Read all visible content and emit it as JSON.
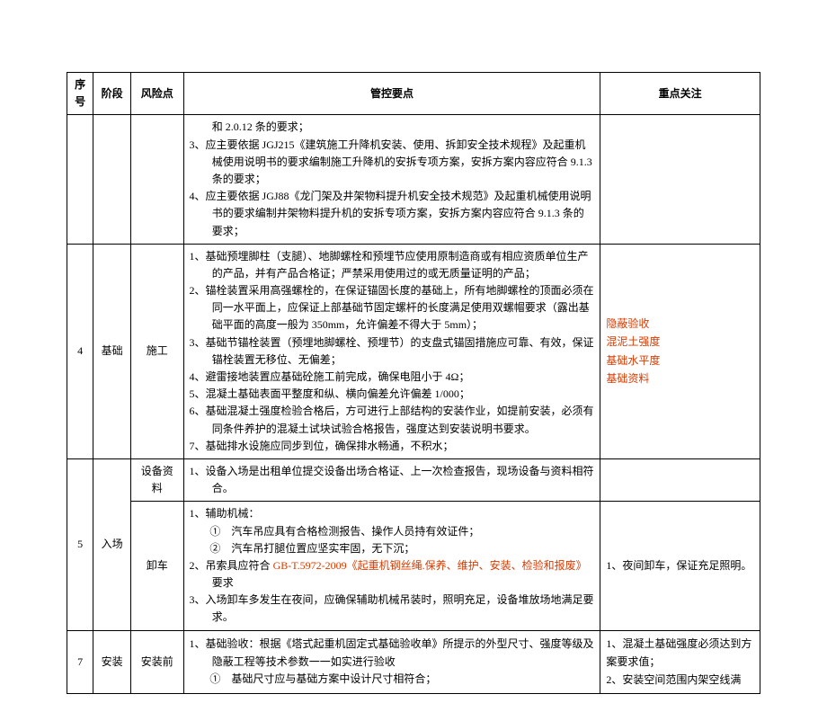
{
  "headers": {
    "seq": "序号",
    "phase": "阶段",
    "risk": "风险点",
    "points": "管控要点",
    "focus": "重点关注"
  },
  "rows": [
    {
      "seq": "",
      "phase": "",
      "risk": "",
      "items": [
        {
          "prefix": "",
          "text": "和 2.0.12 条的要求；"
        },
        {
          "prefix": "3、",
          "text": "应主要依据 JGJ215《建筑施工升降机安装、使用、拆卸安全技术规程》及起重机械使用说明书的要求编制施工升降机的安拆专项方案，安拆方案内容应符合 9.1.3 条的要求；"
        },
        {
          "prefix": "4、",
          "text": "应主要依据 JGJ88《龙门架及井架物料提升机安全技术规范》及起重机械使用说明书的要求编制井架物料提升机的安拆专项方案，安拆方案内容应符合 9.1.3 条的要求；"
        }
      ],
      "focus": ""
    },
    {
      "seq": "4",
      "phase": "基础",
      "risk": "施工",
      "items": [
        {
          "prefix": "1、",
          "text": "基础预埋脚柱（支腿）、地脚螺栓和预埋节应使用原制造商或有相应资质单位生产的产品，并有产品合格证；严禁采用使用过的或无质量证明的产品；"
        },
        {
          "prefix": "2、",
          "text": "锚栓装置采用高强螺栓的，在保证锚固长度的基础上，所有地脚螺栓的顶面必须在同一水平面上，应保证上部基础节固定螺杆的长度满足使用双螺帽要求（露出基础平面的高度一般为 350mm，允许偏差不得大于 5mm）；"
        },
        {
          "prefix": "3、",
          "text": "基础节锚栓装置（预埋地脚螺栓、预埋节）的支盘式锚固措施应可靠、有效，保证锚栓装置无移位、无偏差；"
        },
        {
          "prefix": "4、",
          "text": "避雷接地装置应基础砼施工前完成，确保电阻小于 4Ω；"
        },
        {
          "prefix": "5、",
          "text": "混凝土基础表面平整度和纵、横向偏差允许偏差 1/000；"
        },
        {
          "prefix": "6、",
          "text": "基础混凝土强度检验合格后，方可进行上部结构的安装作业，如提前安装，必须有同条件养护的混凝土试块试验合格报告，强度达到安装说明书要求。"
        },
        {
          "prefix": "7、",
          "text": "基础排水设施应同步到位，确保排水畅通，不积水；"
        }
      ],
      "focus_lines": [
        "隐蔽验收",
        "混泥土强度",
        "基础水平度",
        "基础资料"
      ],
      "focus_red": true
    },
    {
      "seq": "5",
      "phase": "入场",
      "rowspan": 2,
      "subrows": [
        {
          "risk": "设备资料",
          "items": [
            {
              "prefix": "1、",
              "text": "设备入场是出租单位提交设备出场合格证、上一次检查报告，现场设备与资料相符合。"
            }
          ],
          "focus": ""
        },
        {
          "risk": "卸车",
          "items": [
            {
              "prefix": "1、",
              "text": "辅助机械：",
              "subs": [
                {
                  "marker": "①",
                  "text": "汽车吊应具有合格检测报告、操作人员持有效证件；"
                },
                {
                  "marker": "②",
                  "text": "汽车吊打腿位置应坚实牢固，无下沉；"
                }
              ]
            },
            {
              "prefix": "2、",
              "text_parts": [
                {
                  "text": "吊索具应符合 ",
                  "red": false
                },
                {
                  "text": "GB-T.5972-2009《起重机钢丝绳.保养、维护、安装、检验和报废》",
                  "red": true
                },
                {
                  "text": "要求",
                  "red": false
                }
              ]
            },
            {
              "prefix": "3、",
              "text": "入场卸车多发生在夜间，应确保辅助机械吊装时，照明充足，设备堆放场地满足要求。"
            }
          ],
          "focus": "1、夜间卸车，保证充足照明。"
        }
      ]
    },
    {
      "seq": "7",
      "phase": "安装",
      "risk": "安装前",
      "items": [
        {
          "prefix": "1、",
          "text": "基础验收：根据《塔式起重机固定式基础验收单》所提示的外型尺寸、强度等级及隐蔽工程等技术参数一一如实进行验收",
          "subs": [
            {
              "marker": "①",
              "text": "基础尺寸应与基础方案中设计尺寸相符合；"
            }
          ]
        }
      ],
      "focus_lines": [
        "1、混凝土基础强度必须达到方案要求值；",
        "2、安装空间范围内架空线满"
      ]
    }
  ]
}
